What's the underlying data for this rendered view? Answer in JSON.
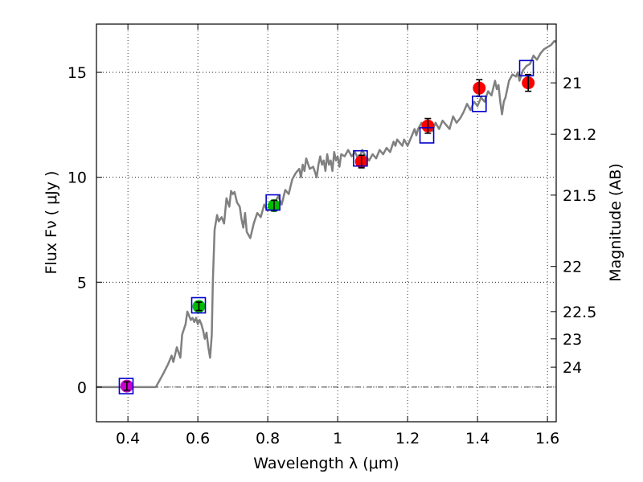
{
  "chart_data": {
    "type": "scatter",
    "xlabel": "Wavelength  λ (μm)",
    "ylabel": "Flux  Fν  ( μJy )",
    "ylabel_right": "Magnitude (AB)",
    "xlim": [
      0.31,
      1.625
    ],
    "ylim": [
      -1.65,
      17.3
    ],
    "grid": true,
    "x_ticks": [
      {
        "value": 0.4,
        "label": "0.4"
      },
      {
        "value": 0.6,
        "label": "0.6"
      },
      {
        "value": 0.8,
        "label": "0.8"
      },
      {
        "value": 1.0,
        "label": "1"
      },
      {
        "value": 1.2,
        "label": "1.2"
      },
      {
        "value": 1.4,
        "label": "1.4"
      },
      {
        "value": 1.6,
        "label": "1.6"
      }
    ],
    "y_ticks": [
      {
        "value": 0,
        "label": "0"
      },
      {
        "value": 5,
        "label": "5"
      },
      {
        "value": 10,
        "label": "10"
      },
      {
        "value": 15,
        "label": "15"
      }
    ],
    "right_ticks": [
      {
        "flux": 14.5,
        "label": "21"
      },
      {
        "flux": 12.05,
        "label": "21.2"
      },
      {
        "flux": 9.15,
        "label": "21.5"
      },
      {
        "flux": 5.75,
        "label": "22"
      },
      {
        "flux": 3.6,
        "label": "22.5"
      },
      {
        "flux": 2.3,
        "label": "23"
      },
      {
        "flux": 0.95,
        "label": "24"
      }
    ],
    "series": [
      {
        "name": "model_spectrum",
        "kind": "line",
        "color": "#808080",
        "points": [
          [
            0.31,
            0.0
          ],
          [
            0.48,
            0.0
          ],
          [
            0.5,
            0.6
          ],
          [
            0.515,
            1.1
          ],
          [
            0.525,
            1.5
          ],
          [
            0.53,
            1.2
          ],
          [
            0.54,
            1.9
          ],
          [
            0.55,
            1.4
          ],
          [
            0.555,
            2.5
          ],
          [
            0.565,
            3.0
          ],
          [
            0.57,
            3.6
          ],
          [
            0.575,
            3.4
          ],
          [
            0.58,
            3.2
          ],
          [
            0.585,
            3.3
          ],
          [
            0.59,
            3.1
          ],
          [
            0.595,
            3.3
          ],
          [
            0.6,
            3.0
          ],
          [
            0.605,
            3.2
          ],
          [
            0.61,
            3.0
          ],
          [
            0.615,
            2.7
          ],
          [
            0.62,
            2.3
          ],
          [
            0.625,
            2.6
          ],
          [
            0.63,
            1.9
          ],
          [
            0.635,
            1.4
          ],
          [
            0.64,
            2.5
          ],
          [
            0.643,
            5.0
          ],
          [
            0.648,
            7.5
          ],
          [
            0.655,
            8.2
          ],
          [
            0.66,
            7.9
          ],
          [
            0.668,
            8.1
          ],
          [
            0.675,
            7.8
          ],
          [
            0.682,
            9.0
          ],
          [
            0.69,
            8.6
          ],
          [
            0.695,
            9.35
          ],
          [
            0.7,
            9.2
          ],
          [
            0.705,
            9.3
          ],
          [
            0.712,
            8.8
          ],
          [
            0.72,
            8.6
          ],
          [
            0.725,
            8.0
          ],
          [
            0.73,
            7.6
          ],
          [
            0.735,
            8.3
          ],
          [
            0.74,
            7.4
          ],
          [
            0.75,
            7.1
          ],
          [
            0.76,
            7.8
          ],
          [
            0.77,
            8.3
          ],
          [
            0.78,
            8.1
          ],
          [
            0.79,
            8.7
          ],
          [
            0.8,
            8.4
          ],
          [
            0.82,
            8.8
          ],
          [
            0.83,
            9.1
          ],
          [
            0.84,
            8.7
          ],
          [
            0.85,
            9.4
          ],
          [
            0.86,
            9.2
          ],
          [
            0.87,
            9.9
          ],
          [
            0.88,
            10.2
          ],
          [
            0.89,
            10.4
          ],
          [
            0.895,
            10.0
          ],
          [
            0.9,
            10.6
          ],
          [
            0.905,
            10.3
          ],
          [
            0.91,
            10.9
          ],
          [
            0.92,
            10.4
          ],
          [
            0.93,
            10.5
          ],
          [
            0.94,
            10.0
          ],
          [
            0.945,
            10.6
          ],
          [
            0.95,
            11.0
          ],
          [
            0.955,
            10.6
          ],
          [
            0.96,
            10.8
          ],
          [
            0.965,
            10.3
          ],
          [
            0.97,
            11.1
          ],
          [
            0.975,
            10.6
          ],
          [
            0.98,
            10.8
          ],
          [
            0.985,
            10.3
          ],
          [
            0.99,
            11.2
          ],
          [
            0.995,
            10.8
          ],
          [
            1.0,
            11.0
          ],
          [
            1.005,
            10.5
          ],
          [
            1.01,
            11.1
          ],
          [
            1.02,
            11.0
          ],
          [
            1.03,
            11.3
          ],
          [
            1.04,
            11.0
          ],
          [
            1.05,
            11.2
          ],
          [
            1.06,
            10.8
          ],
          [
            1.07,
            11.3
          ],
          [
            1.08,
            11.0
          ],
          [
            1.09,
            10.8
          ],
          [
            1.1,
            11.1
          ],
          [
            1.11,
            10.9
          ],
          [
            1.12,
            11.3
          ],
          [
            1.13,
            11.1
          ],
          [
            1.14,
            11.4
          ],
          [
            1.15,
            11.2
          ],
          [
            1.16,
            11.7
          ],
          [
            1.165,
            11.5
          ],
          [
            1.17,
            11.8
          ],
          [
            1.18,
            11.6
          ],
          [
            1.185,
            11.5
          ],
          [
            1.19,
            11.8
          ],
          [
            1.2,
            11.5
          ],
          [
            1.21,
            11.9
          ],
          [
            1.22,
            12.3
          ],
          [
            1.225,
            12.0
          ],
          [
            1.23,
            12.3
          ],
          [
            1.24,
            12.6
          ],
          [
            1.25,
            12.3
          ],
          [
            1.26,
            12.4
          ],
          [
            1.27,
            12.2
          ],
          [
            1.28,
            12.6
          ],
          [
            1.29,
            12.3
          ],
          [
            1.3,
            12.7
          ],
          [
            1.31,
            12.5
          ],
          [
            1.32,
            12.3
          ],
          [
            1.33,
            12.9
          ],
          [
            1.34,
            12.6
          ],
          [
            1.35,
            12.8
          ],
          [
            1.36,
            13.1
          ],
          [
            1.37,
            13.5
          ],
          [
            1.38,
            13.2
          ],
          [
            1.39,
            13.6
          ],
          [
            1.4,
            13.4
          ],
          [
            1.41,
            13.8
          ],
          [
            1.42,
            13.6
          ],
          [
            1.43,
            14.1
          ],
          [
            1.44,
            13.9
          ],
          [
            1.45,
            14.6
          ],
          [
            1.455,
            14.2
          ],
          [
            1.46,
            14.4
          ],
          [
            1.465,
            13.6
          ],
          [
            1.47,
            13.0
          ],
          [
            1.475,
            13.6
          ],
          [
            1.48,
            13.8
          ],
          [
            1.49,
            14.6
          ],
          [
            1.5,
            14.9
          ],
          [
            1.51,
            14.8
          ],
          [
            1.515,
            15.0
          ],
          [
            1.52,
            14.6
          ],
          [
            1.53,
            15.1
          ],
          [
            1.54,
            15.3
          ],
          [
            1.55,
            15.4
          ],
          [
            1.56,
            15.8
          ],
          [
            1.57,
            15.6
          ],
          [
            1.58,
            15.9
          ],
          [
            1.59,
            16.1
          ],
          [
            1.6,
            16.2
          ],
          [
            1.61,
            16.3
          ],
          [
            1.62,
            16.5
          ],
          [
            1.625,
            16.45
          ]
        ]
      },
      {
        "name": "model_photometry",
        "kind": "open-square",
        "color": "#0000cc",
        "points": [
          [
            0.395,
            0.05
          ],
          [
            0.602,
            3.9
          ],
          [
            0.815,
            8.8
          ],
          [
            1.065,
            10.9
          ],
          [
            1.255,
            12.0
          ],
          [
            1.405,
            13.5
          ],
          [
            1.54,
            15.2
          ]
        ]
      },
      {
        "name": "observed_photometry",
        "kind": "filled-circle",
        "points": [
          {
            "x": 0.397,
            "y": 0.05,
            "err": 0.2,
            "color": "#cc00cc"
          },
          {
            "x": 0.603,
            "y": 3.85,
            "err": 0.2,
            "color": "#00bb00"
          },
          {
            "x": 0.818,
            "y": 8.65,
            "err": 0.25,
            "color": "#00bb00"
          },
          {
            "x": 1.068,
            "y": 10.75,
            "err": 0.3,
            "color": "#ff0000"
          },
          {
            "x": 1.258,
            "y": 12.45,
            "err": 0.35,
            "color": "#ff0000"
          },
          {
            "x": 1.405,
            "y": 14.25,
            "err": 0.4,
            "color": "#ff0000"
          },
          {
            "x": 1.545,
            "y": 14.5,
            "err": 0.4,
            "color": "#ff0000"
          }
        ]
      }
    ]
  }
}
